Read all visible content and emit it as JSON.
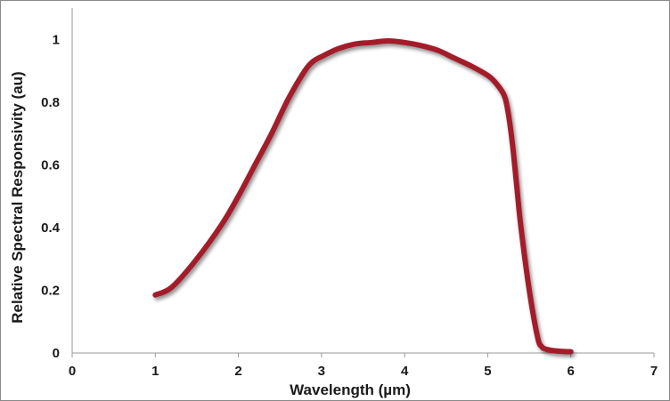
{
  "chart_data": {
    "type": "line",
    "xlabel": "Wavelength (µm)",
    "ylabel": "Relative Spectral Responsivity (au)",
    "xlim": [
      0,
      7
    ],
    "ylim": [
      0,
      1.1
    ],
    "x_ticks": [
      "0",
      "1",
      "2",
      "3",
      "4",
      "5",
      "6",
      "7"
    ],
    "y_ticks": [
      "0",
      "0.2",
      "0.4",
      "0.6",
      "0.8",
      "1"
    ],
    "grid": false,
    "legend": "none",
    "line_color": "#a31f2a",
    "series": [
      {
        "x": [
          1.0,
          1.2,
          1.5,
          1.8,
          2.0,
          2.2,
          2.4,
          2.6,
          2.8,
          2.9,
          3.0,
          3.2,
          3.4,
          3.6,
          3.8,
          4.0,
          4.2,
          4.4,
          4.6,
          4.8,
          5.0,
          5.1,
          5.2,
          5.25,
          5.3,
          5.35,
          5.4,
          5.5,
          5.6,
          5.65,
          5.7,
          5.8,
          5.9,
          6.0
        ],
        "y": [
          0.185,
          0.21,
          0.3,
          0.41,
          0.5,
          0.6,
          0.7,
          0.81,
          0.9,
          0.93,
          0.945,
          0.97,
          0.985,
          0.99,
          0.995,
          0.99,
          0.98,
          0.965,
          0.94,
          0.915,
          0.885,
          0.86,
          0.82,
          0.76,
          0.66,
          0.53,
          0.4,
          0.2,
          0.05,
          0.02,
          0.012,
          0.007,
          0.005,
          0.004
        ]
      }
    ]
  }
}
